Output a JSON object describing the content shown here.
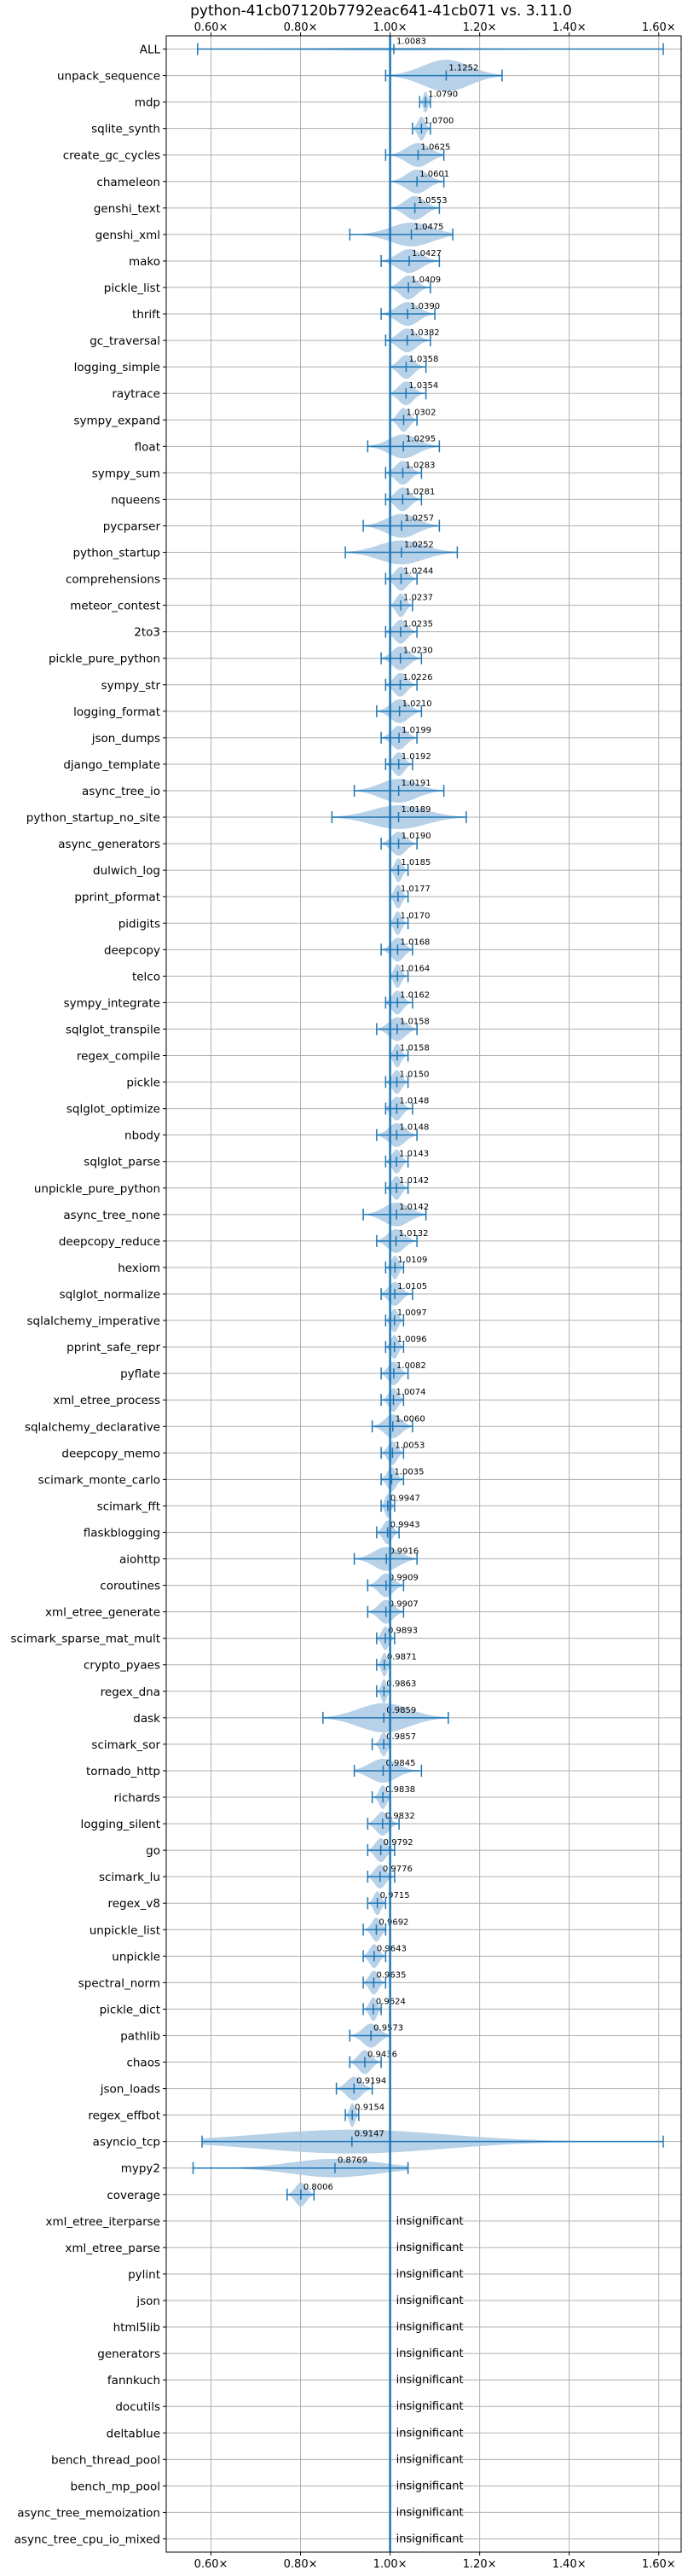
{
  "chart_data": {
    "type": "violin",
    "title": "python-41cb07120b7792eac641-41cb071 vs. 3.11.0",
    "xlabel": "",
    "ylabel": "",
    "xlim": [
      0.5,
      1.65
    ],
    "x_ticks": [
      0.6,
      0.8,
      1.0,
      1.2,
      1.4,
      1.6
    ],
    "x_tick_labels": [
      "0.60×",
      "0.80×",
      "1.00×",
      "1.20×",
      "1.40×",
      "1.60×"
    ],
    "reference_line": 1.0,
    "grid": true,
    "insignificant_text": "insignificant",
    "colors": {
      "violin": "#aac9e4",
      "line": "#1f77b4",
      "grid": "#b0b0b0"
    },
    "benchmarks": [
      {
        "name": "ALL",
        "value": "1.0083",
        "mean": 1.0083,
        "min": 0.57,
        "max": 1.61,
        "width": 0.055
      },
      {
        "name": "unpack_sequence",
        "value": "1.1252",
        "mean": 1.1252,
        "min": 0.99,
        "max": 1.25,
        "width": 0.6
      },
      {
        "name": "mdp",
        "value": "1.0790",
        "mean": 1.079,
        "min": 1.066,
        "max": 1.09,
        "width": 0.4
      },
      {
        "name": "sqlite_synth",
        "value": "1.0700",
        "mean": 1.07,
        "min": 1.05,
        "max": 1.09,
        "width": 0.45
      },
      {
        "name": "create_gc_cycles",
        "value": "1.0625",
        "mean": 1.0625,
        "min": 0.99,
        "max": 1.12,
        "width": 0.45
      },
      {
        "name": "chameleon",
        "value": "1.0601",
        "mean": 1.0601,
        "min": 1.0,
        "max": 1.12,
        "width": 0.45
      },
      {
        "name": "genshi_text",
        "value": "1.0553",
        "mean": 1.0553,
        "min": 1.0,
        "max": 1.11,
        "width": 0.45
      },
      {
        "name": "genshi_xml",
        "value": "1.0475",
        "mean": 1.0475,
        "min": 0.91,
        "max": 1.14,
        "width": 0.45
      },
      {
        "name": "mako",
        "value": "1.0427",
        "mean": 1.0427,
        "min": 0.98,
        "max": 1.11,
        "width": 0.45
      },
      {
        "name": "pickle_list",
        "value": "1.0409",
        "mean": 1.0409,
        "min": 1.0,
        "max": 1.09,
        "width": 0.45
      },
      {
        "name": "thrift",
        "value": "1.0390",
        "mean": 1.039,
        "min": 0.98,
        "max": 1.1,
        "width": 0.45
      },
      {
        "name": "gc_traversal",
        "value": "1.0382",
        "mean": 1.0382,
        "min": 0.99,
        "max": 1.09,
        "width": 0.45
      },
      {
        "name": "logging_simple",
        "value": "1.0358",
        "mean": 1.0358,
        "min": 1.0,
        "max": 1.08,
        "width": 0.45
      },
      {
        "name": "raytrace",
        "value": "1.0354",
        "mean": 1.0354,
        "min": 1.0,
        "max": 1.08,
        "width": 0.45
      },
      {
        "name": "sympy_expand",
        "value": "1.0302",
        "mean": 1.0302,
        "min": 1.0,
        "max": 1.06,
        "width": 0.45
      },
      {
        "name": "float",
        "value": "1.0295",
        "mean": 1.0295,
        "min": 0.95,
        "max": 1.11,
        "width": 0.45
      },
      {
        "name": "sympy_sum",
        "value": "1.0283",
        "mean": 1.0283,
        "min": 0.99,
        "max": 1.07,
        "width": 0.45
      },
      {
        "name": "nqueens",
        "value": "1.0281",
        "mean": 1.0281,
        "min": 0.99,
        "max": 1.07,
        "width": 0.45
      },
      {
        "name": "pycparser",
        "value": "1.0257",
        "mean": 1.0257,
        "min": 0.94,
        "max": 1.11,
        "width": 0.45
      },
      {
        "name": "python_startup",
        "value": "1.0252",
        "mean": 1.0252,
        "min": 0.9,
        "max": 1.15,
        "width": 0.45
      },
      {
        "name": "comprehensions",
        "value": "1.0244",
        "mean": 1.0244,
        "min": 0.99,
        "max": 1.06,
        "width": 0.45
      },
      {
        "name": "meteor_contest",
        "value": "1.0237",
        "mean": 1.0237,
        "min": 1.0,
        "max": 1.05,
        "width": 0.45
      },
      {
        "name": "2to3",
        "value": "1.0235",
        "mean": 1.0235,
        "min": 0.99,
        "max": 1.06,
        "width": 0.45
      },
      {
        "name": "pickle_pure_python",
        "value": "1.0230",
        "mean": 1.023,
        "min": 0.98,
        "max": 1.07,
        "width": 0.45
      },
      {
        "name": "sympy_str",
        "value": "1.0226",
        "mean": 1.0226,
        "min": 0.99,
        "max": 1.06,
        "width": 0.45
      },
      {
        "name": "logging_format",
        "value": "1.0210",
        "mean": 1.021,
        "min": 0.97,
        "max": 1.07,
        "width": 0.45
      },
      {
        "name": "json_dumps",
        "value": "1.0199",
        "mean": 1.0199,
        "min": 0.98,
        "max": 1.06,
        "width": 0.45
      },
      {
        "name": "django_template",
        "value": "1.0192",
        "mean": 1.0192,
        "min": 0.99,
        "max": 1.05,
        "width": 0.45
      },
      {
        "name": "async_tree_io",
        "value": "1.0191",
        "mean": 1.0191,
        "min": 0.92,
        "max": 1.12,
        "width": 0.45
      },
      {
        "name": "python_startup_no_site",
        "value": "1.0189",
        "mean": 1.0189,
        "min": 0.87,
        "max": 1.17,
        "width": 0.45
      },
      {
        "name": "async_generators",
        "value": "1.0190",
        "mean": 1.019,
        "min": 0.98,
        "max": 1.06,
        "width": 0.45
      },
      {
        "name": "dulwich_log",
        "value": "1.0185",
        "mean": 1.0185,
        "min": 1.0,
        "max": 1.04,
        "width": 0.45
      },
      {
        "name": "pprint_pformat",
        "value": "1.0177",
        "mean": 1.0177,
        "min": 1.0,
        "max": 1.04,
        "width": 0.45
      },
      {
        "name": "pidigits",
        "value": "1.0170",
        "mean": 1.017,
        "min": 1.0,
        "max": 1.04,
        "width": 0.45
      },
      {
        "name": "deepcopy",
        "value": "1.0168",
        "mean": 1.0168,
        "min": 0.98,
        "max": 1.05,
        "width": 0.45
      },
      {
        "name": "telco",
        "value": "1.0164",
        "mean": 1.0164,
        "min": 1.0,
        "max": 1.04,
        "width": 0.45
      },
      {
        "name": "sympy_integrate",
        "value": "1.0162",
        "mean": 1.0162,
        "min": 0.99,
        "max": 1.05,
        "width": 0.45
      },
      {
        "name": "sqlglot_transpile",
        "value": "1.0158",
        "mean": 1.0158,
        "min": 0.97,
        "max": 1.06,
        "width": 0.45
      },
      {
        "name": "regex_compile",
        "value": "1.0158",
        "mean": 1.0158,
        "min": 1.0,
        "max": 1.04,
        "width": 0.45
      },
      {
        "name": "pickle",
        "value": "1.0150",
        "mean": 1.015,
        "min": 0.99,
        "max": 1.04,
        "width": 0.45
      },
      {
        "name": "sqlglot_optimize",
        "value": "1.0148",
        "mean": 1.0148,
        "min": 0.99,
        "max": 1.05,
        "width": 0.45
      },
      {
        "name": "nbody",
        "value": "1.0148",
        "mean": 1.0148,
        "min": 0.97,
        "max": 1.06,
        "width": 0.45
      },
      {
        "name": "sqlglot_parse",
        "value": "1.0143",
        "mean": 1.0143,
        "min": 0.99,
        "max": 1.04,
        "width": 0.45
      },
      {
        "name": "unpickle_pure_python",
        "value": "1.0142",
        "mean": 1.0142,
        "min": 0.99,
        "max": 1.04,
        "width": 0.45
      },
      {
        "name": "async_tree_none",
        "value": "1.0142",
        "mean": 1.0142,
        "min": 0.94,
        "max": 1.08,
        "width": 0.45
      },
      {
        "name": "deepcopy_reduce",
        "value": "1.0132",
        "mean": 1.0132,
        "min": 0.97,
        "max": 1.06,
        "width": 0.45
      },
      {
        "name": "hexiom",
        "value": "1.0109",
        "mean": 1.0109,
        "min": 0.99,
        "max": 1.03,
        "width": 0.45
      },
      {
        "name": "sqlglot_normalize",
        "value": "1.0105",
        "mean": 1.0105,
        "min": 0.98,
        "max": 1.05,
        "width": 0.45
      },
      {
        "name": "sqlalchemy_imperative",
        "value": "1.0097",
        "mean": 1.0097,
        "min": 0.99,
        "max": 1.03,
        "width": 0.45
      },
      {
        "name": "pprint_safe_repr",
        "value": "1.0096",
        "mean": 1.0096,
        "min": 0.99,
        "max": 1.03,
        "width": 0.45
      },
      {
        "name": "pyflate",
        "value": "1.0082",
        "mean": 1.0082,
        "min": 0.98,
        "max": 1.04,
        "width": 0.45
      },
      {
        "name": "xml_etree_process",
        "value": "1.0074",
        "mean": 1.0074,
        "min": 0.98,
        "max": 1.03,
        "width": 0.45
      },
      {
        "name": "sqlalchemy_declarative",
        "value": "1.0060",
        "mean": 1.006,
        "min": 0.96,
        "max": 1.05,
        "width": 0.45
      },
      {
        "name": "deepcopy_memo",
        "value": "1.0053",
        "mean": 1.0053,
        "min": 0.98,
        "max": 1.03,
        "width": 0.45
      },
      {
        "name": "scimark_monte_carlo",
        "value": "1.0035",
        "mean": 1.0035,
        "min": 0.98,
        "max": 1.03,
        "width": 0.45
      },
      {
        "name": "scimark_fft",
        "value": "0.9947",
        "mean": 0.9947,
        "min": 0.98,
        "max": 1.01,
        "width": 0.45
      },
      {
        "name": "flaskblogging",
        "value": "0.9943",
        "mean": 0.9943,
        "min": 0.97,
        "max": 1.02,
        "width": 0.45
      },
      {
        "name": "aiohttp",
        "value": "0.9916",
        "mean": 0.9916,
        "min": 0.92,
        "max": 1.06,
        "width": 0.45
      },
      {
        "name": "coroutines",
        "value": "0.9909",
        "mean": 0.9909,
        "min": 0.95,
        "max": 1.03,
        "width": 0.45
      },
      {
        "name": "xml_etree_generate",
        "value": "0.9907",
        "mean": 0.9907,
        "min": 0.95,
        "max": 1.03,
        "width": 0.45
      },
      {
        "name": "scimark_sparse_mat_mult",
        "value": "0.9893",
        "mean": 0.9893,
        "min": 0.97,
        "max": 1.01,
        "width": 0.45
      },
      {
        "name": "crypto_pyaes",
        "value": "0.9871",
        "mean": 0.9871,
        "min": 0.97,
        "max": 1.0,
        "width": 0.45
      },
      {
        "name": "regex_dna",
        "value": "0.9863",
        "mean": 0.9863,
        "min": 0.97,
        "max": 1.0,
        "width": 0.45
      },
      {
        "name": "dask",
        "value": "0.9859",
        "mean": 0.9859,
        "min": 0.85,
        "max": 1.13,
        "width": 0.55
      },
      {
        "name": "scimark_sor",
        "value": "0.9857",
        "mean": 0.9857,
        "min": 0.96,
        "max": 1.0,
        "width": 0.45
      },
      {
        "name": "tornado_http",
        "value": "0.9845",
        "mean": 0.9845,
        "min": 0.92,
        "max": 1.07,
        "width": 0.45
      },
      {
        "name": "richards",
        "value": "0.9838",
        "mean": 0.9838,
        "min": 0.96,
        "max": 1.0,
        "width": 0.45
      },
      {
        "name": "logging_silent",
        "value": "0.9832",
        "mean": 0.9832,
        "min": 0.95,
        "max": 1.02,
        "width": 0.45
      },
      {
        "name": "go",
        "value": "0.9792",
        "mean": 0.9792,
        "min": 0.95,
        "max": 1.01,
        "width": 0.45
      },
      {
        "name": "scimark_lu",
        "value": "0.9776",
        "mean": 0.9776,
        "min": 0.95,
        "max": 1.01,
        "width": 0.45
      },
      {
        "name": "regex_v8",
        "value": "0.9715",
        "mean": 0.9715,
        "min": 0.95,
        "max": 0.99,
        "width": 0.45
      },
      {
        "name": "unpickle_list",
        "value": "0.9692",
        "mean": 0.9692,
        "min": 0.94,
        "max": 0.99,
        "width": 0.45
      },
      {
        "name": "unpickle",
        "value": "0.9643",
        "mean": 0.9643,
        "min": 0.94,
        "max": 0.99,
        "width": 0.45
      },
      {
        "name": "spectral_norm",
        "value": "0.9635",
        "mean": 0.9635,
        "min": 0.94,
        "max": 0.99,
        "width": 0.45
      },
      {
        "name": "pickle_dict",
        "value": "0.9624",
        "mean": 0.9624,
        "min": 0.94,
        "max": 0.98,
        "width": 0.45
      },
      {
        "name": "pathlib",
        "value": "0.9573",
        "mean": 0.9573,
        "min": 0.91,
        "max": 1.0,
        "width": 0.45
      },
      {
        "name": "chaos",
        "value": "0.9436",
        "mean": 0.9436,
        "min": 0.91,
        "max": 0.98,
        "width": 0.45
      },
      {
        "name": "json_loads",
        "value": "0.9194",
        "mean": 0.9194,
        "min": 0.88,
        "max": 0.96,
        "width": 0.45
      },
      {
        "name": "regex_effbot",
        "value": "0.9154",
        "mean": 0.9154,
        "min": 0.9,
        "max": 0.93,
        "width": 0.45
      },
      {
        "name": "asyncio_tcp",
        "value": "0.9147",
        "mean": 0.9147,
        "min": 0.58,
        "max": 1.61,
        "width": 0.45
      },
      {
        "name": "mypy2",
        "value": "0.8769",
        "mean": 0.8769,
        "min": 0.56,
        "max": 1.04,
        "width": 0.35
      },
      {
        "name": "coverage",
        "value": "0.8006",
        "mean": 0.8006,
        "min": 0.77,
        "max": 0.83,
        "width": 0.45
      },
      {
        "name": "xml_etree_iterparse",
        "insignificant": true
      },
      {
        "name": "xml_etree_parse",
        "insignificant": true
      },
      {
        "name": "pylint",
        "insignificant": true
      },
      {
        "name": "json",
        "insignificant": true
      },
      {
        "name": "html5lib",
        "insignificant": true
      },
      {
        "name": "generators",
        "insignificant": true
      },
      {
        "name": "fannkuch",
        "insignificant": true
      },
      {
        "name": "docutils",
        "insignificant": true
      },
      {
        "name": "deltablue",
        "insignificant": true
      },
      {
        "name": "bench_thread_pool",
        "insignificant": true
      },
      {
        "name": "bench_mp_pool",
        "insignificant": true
      },
      {
        "name": "async_tree_memoization",
        "insignificant": true
      },
      {
        "name": "async_tree_cpu_io_mixed",
        "insignificant": true
      }
    ]
  }
}
